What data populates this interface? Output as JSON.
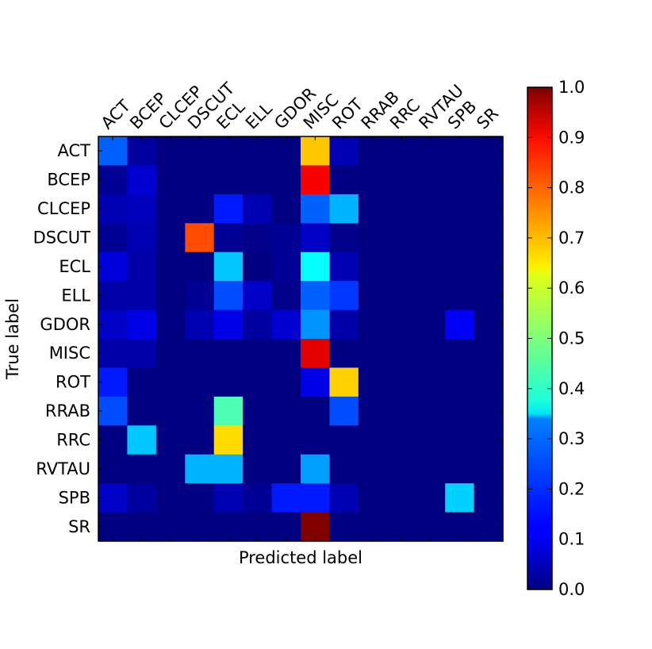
{
  "chart_data": {
    "type": "heatmap",
    "title": "",
    "xlabel": "Predicted label",
    "ylabel": "True label",
    "x_categories": [
      "ACT",
      "BCEP",
      "CLCEP",
      "DSCUT",
      "ECL",
      "ELL",
      "GDOR",
      "MISC",
      "ROT",
      "RRAB",
      "RRC",
      "RVTAU",
      "SPB",
      "SR"
    ],
    "y_categories": [
      "ACT",
      "BCEP",
      "CLCEP",
      "DSCUT",
      "ECL",
      "ELL",
      "GDOR",
      "MISC",
      "ROT",
      "RRAB",
      "RRC",
      "RVTAU",
      "SPB",
      "SR"
    ],
    "colormap": "jet",
    "value_range": [
      0.0,
      1.0
    ],
    "colorbar_ticks": [
      "0.0",
      "0.1",
      "0.2",
      "0.3",
      "0.4",
      "0.5",
      "0.6",
      "0.7",
      "0.8",
      "0.9",
      "1.0"
    ],
    "values": [
      [
        0.22,
        0.03,
        0.0,
        0.0,
        0.0,
        0.0,
        0.0,
        0.68,
        0.05,
        0.0,
        0.0,
        0.0,
        0.0,
        0.0
      ],
      [
        0.02,
        0.08,
        0.0,
        0.0,
        0.0,
        0.0,
        0.0,
        0.88,
        0.0,
        0.0,
        0.0,
        0.0,
        0.0,
        0.0
      ],
      [
        0.05,
        0.06,
        0.0,
        0.0,
        0.15,
        0.05,
        0.0,
        0.22,
        0.3,
        0.0,
        0.0,
        0.0,
        0.0,
        0.0
      ],
      [
        0.02,
        0.05,
        0.0,
        0.8,
        0.02,
        0.01,
        0.02,
        0.07,
        0.01,
        0.0,
        0.0,
        0.0,
        0.0,
        0.0
      ],
      [
        0.09,
        0.04,
        0.0,
        0.0,
        0.32,
        0.0,
        0.02,
        0.38,
        0.05,
        0.0,
        0.0,
        0.0,
        0.0,
        0.0
      ],
      [
        0.04,
        0.04,
        0.0,
        0.02,
        0.2,
        0.07,
        0.01,
        0.22,
        0.18,
        0.0,
        0.0,
        0.0,
        0.0,
        0.0
      ],
      [
        0.07,
        0.1,
        0.0,
        0.05,
        0.1,
        0.03,
        0.08,
        0.27,
        0.04,
        0.0,
        0.0,
        0.0,
        0.12,
        0.0
      ],
      [
        0.04,
        0.04,
        0.0,
        0.0,
        0.0,
        0.0,
        0.0,
        0.9,
        0.0,
        0.0,
        0.0,
        0.0,
        0.0,
        0.0
      ],
      [
        0.15,
        0.0,
        0.0,
        0.0,
        0.0,
        0.0,
        0.0,
        0.1,
        0.67,
        0.0,
        0.0,
        0.0,
        0.0,
        0.0
      ],
      [
        0.2,
        0.0,
        0.0,
        0.0,
        0.45,
        0.0,
        0.0,
        0.0,
        0.2,
        0.0,
        0.0,
        0.0,
        0.0,
        0.0
      ],
      [
        0.0,
        0.32,
        0.0,
        0.0,
        0.66,
        0.0,
        0.0,
        0.0,
        0.0,
        0.0,
        0.0,
        0.0,
        0.0,
        0.0
      ],
      [
        0.0,
        0.0,
        0.0,
        0.3,
        0.3,
        0.0,
        0.0,
        0.28,
        0.0,
        0.0,
        0.0,
        0.0,
        0.0,
        0.0
      ],
      [
        0.07,
        0.03,
        0.0,
        0.0,
        0.05,
        0.02,
        0.15,
        0.15,
        0.05,
        0.0,
        0.0,
        0.0,
        0.33,
        0.0
      ],
      [
        0.0,
        0.0,
        0.0,
        0.0,
        0.0,
        0.0,
        0.0,
        1.0,
        0.0,
        0.0,
        0.0,
        0.0,
        0.0,
        0.0
      ]
    ]
  }
}
